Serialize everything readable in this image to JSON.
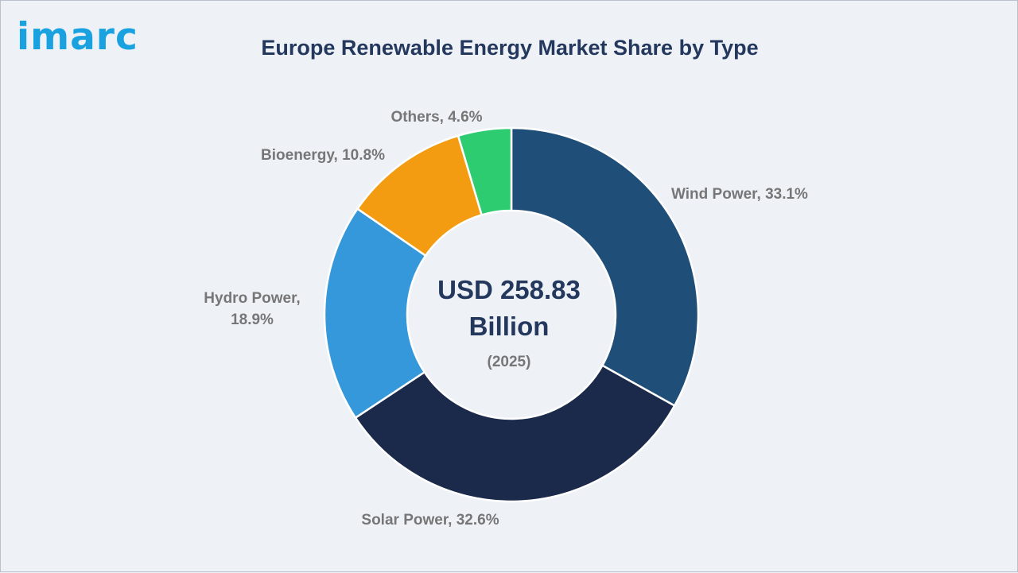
{
  "brand": {
    "logo_text": "imarc"
  },
  "chart_data": {
    "type": "pie",
    "title": "Europe Renewable Energy Market Share by Type",
    "center_value": "USD 258.83",
    "center_unit": "Billion",
    "center_year": "(2025)",
    "slices": [
      {
        "name": "Wind Power",
        "value": 33.1,
        "label": "Wind Power, 33.1%",
        "color": "#1f4e79"
      },
      {
        "name": "Solar Power",
        "value": 32.6,
        "label": "Solar Power, 32.6%",
        "color": "#1b2a4a"
      },
      {
        "name": "Hydro Power",
        "value": 18.9,
        "label_lines": [
          "Hydro Power,",
          "18.9%"
        ],
        "color": "#3498db"
      },
      {
        "name": "Bioenergy",
        "value": 10.8,
        "label": "Bioenergy, 10.8%",
        "color": "#f39c12"
      },
      {
        "name": "Others",
        "value": 4.6,
        "label": "Others, 4.6%",
        "color": "#2ecc71"
      }
    ]
  }
}
